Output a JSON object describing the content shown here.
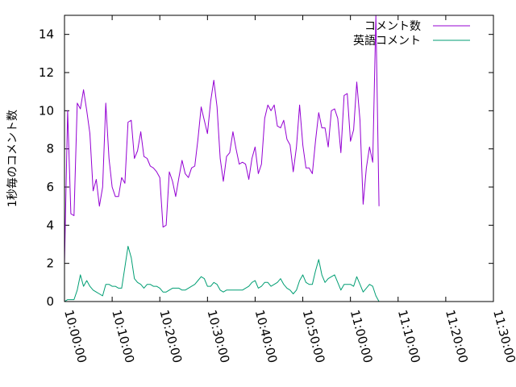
{
  "chart_data": {
    "type": "line",
    "title": "",
    "xlabel": "",
    "ylabel": "1秒毎のコメント数",
    "xlim": [
      "10:00:00",
      "11:30:00"
    ],
    "ylim": [
      0,
      15
    ],
    "x_ticks": [
      "10:00:00",
      "10:10:00",
      "10:20:00",
      "10:30:00",
      "10:40:00",
      "10:50:00",
      "11:00:00",
      "11:10:00",
      "11:20:00",
      "11:30:00"
    ],
    "y_ticks": [
      0,
      2,
      4,
      6,
      8,
      10,
      12,
      14
    ],
    "grid": false,
    "legend_position": "top-right",
    "series": [
      {
        "name": "コメント数",
        "color": "#9400d3",
        "points": [
          [
            "10:00:00",
            2.0
          ],
          [
            "10:00:40",
            10.0
          ],
          [
            "10:01:20",
            4.6
          ],
          [
            "10:02:00",
            4.5
          ],
          [
            "10:02:40",
            10.4
          ],
          [
            "10:03:20",
            10.1
          ],
          [
            "10:04:00",
            11.1
          ],
          [
            "10:04:40",
            10.0
          ],
          [
            "10:05:20",
            8.8
          ],
          [
            "10:06:00",
            5.8
          ],
          [
            "10:06:40",
            6.4
          ],
          [
            "10:07:20",
            5.0
          ],
          [
            "10:08:00",
            6.0
          ],
          [
            "10:08:40",
            10.4
          ],
          [
            "10:09:20",
            7.5
          ],
          [
            "10:10:00",
            6.0
          ],
          [
            "10:10:40",
            5.5
          ],
          [
            "10:11:20",
            5.5
          ],
          [
            "10:12:00",
            6.5
          ],
          [
            "10:12:40",
            6.2
          ],
          [
            "10:13:20",
            9.4
          ],
          [
            "10:14:00",
            9.5
          ],
          [
            "10:14:40",
            7.5
          ],
          [
            "10:15:20",
            7.9
          ],
          [
            "10:16:00",
            8.9
          ],
          [
            "10:16:40",
            7.6
          ],
          [
            "10:17:20",
            7.5
          ],
          [
            "10:18:00",
            7.1
          ],
          [
            "10:18:40",
            7.0
          ],
          [
            "10:19:20",
            6.8
          ],
          [
            "10:20:00",
            6.5
          ],
          [
            "10:20:40",
            3.9
          ],
          [
            "10:21:20",
            4.0
          ],
          [
            "10:22:00",
            6.8
          ],
          [
            "10:22:40",
            6.3
          ],
          [
            "10:23:20",
            5.5
          ],
          [
            "10:24:00",
            6.5
          ],
          [
            "10:24:40",
            7.4
          ],
          [
            "10:25:20",
            6.7
          ],
          [
            "10:26:00",
            6.5
          ],
          [
            "10:26:40",
            7.0
          ],
          [
            "10:27:20",
            7.1
          ],
          [
            "10:28:00",
            8.5
          ],
          [
            "10:28:40",
            10.2
          ],
          [
            "10:29:20",
            9.5
          ],
          [
            "10:30:00",
            8.8
          ],
          [
            "10:30:40",
            10.5
          ],
          [
            "10:31:20",
            11.6
          ],
          [
            "10:32:00",
            10.2
          ],
          [
            "10:32:40",
            7.5
          ],
          [
            "10:33:20",
            6.3
          ],
          [
            "10:34:00",
            7.6
          ],
          [
            "10:34:40",
            7.8
          ],
          [
            "10:35:20",
            8.9
          ],
          [
            "10:36:00",
            8.0
          ],
          [
            "10:36:40",
            7.2
          ],
          [
            "10:37:20",
            7.3
          ],
          [
            "10:38:00",
            7.2
          ],
          [
            "10:38:40",
            6.4
          ],
          [
            "10:39:20",
            7.5
          ],
          [
            "10:40:00",
            8.1
          ],
          [
            "10:40:40",
            6.7
          ],
          [
            "10:41:20",
            7.2
          ],
          [
            "10:42:00",
            9.6
          ],
          [
            "10:42:40",
            10.3
          ],
          [
            "10:43:20",
            10.0
          ],
          [
            "10:44:00",
            10.3
          ],
          [
            "10:44:40",
            9.2
          ],
          [
            "10:45:20",
            9.1
          ],
          [
            "10:46:00",
            9.5
          ],
          [
            "10:46:40",
            8.5
          ],
          [
            "10:47:20",
            8.2
          ],
          [
            "10:48:00",
            6.8
          ],
          [
            "10:48:40",
            8.1
          ],
          [
            "10:49:20",
            10.3
          ],
          [
            "10:50:00",
            8.2
          ],
          [
            "10:50:40",
            7.0
          ],
          [
            "10:51:20",
            7.0
          ],
          [
            "10:52:00",
            6.7
          ],
          [
            "10:52:40",
            8.4
          ],
          [
            "10:53:20",
            9.9
          ],
          [
            "10:54:00",
            9.1
          ],
          [
            "10:54:40",
            9.1
          ],
          [
            "10:55:20",
            8.1
          ],
          [
            "10:56:00",
            10.0
          ],
          [
            "10:56:40",
            10.1
          ],
          [
            "10:57:20",
            9.6
          ],
          [
            "10:58:00",
            7.8
          ],
          [
            "10:58:40",
            10.8
          ],
          [
            "10:59:20",
            10.9
          ],
          [
            "11:00:00",
            8.4
          ],
          [
            "11:00:40",
            9.0
          ],
          [
            "11:01:20",
            11.5
          ],
          [
            "11:02:00",
            9.5
          ],
          [
            "11:02:40",
            5.1
          ],
          [
            "11:03:20",
            7.0
          ],
          [
            "11:04:00",
            8.1
          ],
          [
            "11:04:40",
            7.3
          ],
          [
            "11:05:20",
            15.0
          ],
          [
            "11:06:00",
            5.0
          ]
        ]
      },
      {
        "name": "英語コメント",
        "color": "#009e73",
        "points": [
          [
            "10:00:00",
            0.0
          ],
          [
            "10:00:40",
            0.1
          ],
          [
            "10:01:20",
            0.1
          ],
          [
            "10:02:00",
            0.1
          ],
          [
            "10:02:40",
            0.6
          ],
          [
            "10:03:20",
            1.4
          ],
          [
            "10:04:00",
            0.8
          ],
          [
            "10:04:40",
            1.1
          ],
          [
            "10:05:20",
            0.8
          ],
          [
            "10:06:00",
            0.6
          ],
          [
            "10:06:40",
            0.5
          ],
          [
            "10:07:20",
            0.4
          ],
          [
            "10:08:00",
            0.3
          ],
          [
            "10:08:40",
            0.9
          ],
          [
            "10:09:20",
            0.9
          ],
          [
            "10:10:00",
            0.8
          ],
          [
            "10:10:40",
            0.8
          ],
          [
            "10:11:20",
            0.7
          ],
          [
            "10:12:00",
            0.7
          ],
          [
            "10:12:40",
            1.8
          ],
          [
            "10:13:20",
            2.9
          ],
          [
            "10:14:00",
            2.3
          ],
          [
            "10:14:40",
            1.2
          ],
          [
            "10:15:20",
            1.0
          ],
          [
            "10:16:00",
            0.9
          ],
          [
            "10:16:40",
            0.7
          ],
          [
            "10:17:20",
            0.9
          ],
          [
            "10:18:00",
            0.9
          ],
          [
            "10:18:40",
            0.8
          ],
          [
            "10:19:20",
            0.8
          ],
          [
            "10:20:00",
            0.7
          ],
          [
            "10:20:40",
            0.5
          ],
          [
            "10:21:20",
            0.5
          ],
          [
            "10:22:00",
            0.6
          ],
          [
            "10:22:40",
            0.7
          ],
          [
            "10:23:20",
            0.7
          ],
          [
            "10:24:00",
            0.7
          ],
          [
            "10:24:40",
            0.6
          ],
          [
            "10:25:20",
            0.6
          ],
          [
            "10:26:00",
            0.7
          ],
          [
            "10:26:40",
            0.8
          ],
          [
            "10:27:20",
            0.9
          ],
          [
            "10:28:00",
            1.1
          ],
          [
            "10:28:40",
            1.3
          ],
          [
            "10:29:20",
            1.2
          ],
          [
            "10:30:00",
            0.8
          ],
          [
            "10:30:40",
            0.8
          ],
          [
            "10:31:20",
            1.0
          ],
          [
            "10:32:00",
            0.9
          ],
          [
            "10:32:40",
            0.6
          ],
          [
            "10:33:20",
            0.5
          ],
          [
            "10:34:00",
            0.6
          ],
          [
            "10:34:40",
            0.6
          ],
          [
            "10:35:20",
            0.6
          ],
          [
            "10:36:00",
            0.6
          ],
          [
            "10:36:40",
            0.6
          ],
          [
            "10:37:20",
            0.6
          ],
          [
            "10:38:00",
            0.7
          ],
          [
            "10:38:40",
            0.8
          ],
          [
            "10:39:20",
            1.0
          ],
          [
            "10:40:00",
            1.1
          ],
          [
            "10:40:40",
            0.7
          ],
          [
            "10:41:20",
            0.8
          ],
          [
            "10:42:00",
            1.0
          ],
          [
            "10:42:40",
            1.0
          ],
          [
            "10:43:20",
            0.8
          ],
          [
            "10:44:00",
            0.9
          ],
          [
            "10:44:40",
            1.0
          ],
          [
            "10:45:20",
            1.2
          ],
          [
            "10:46:00",
            0.9
          ],
          [
            "10:46:40",
            0.7
          ],
          [
            "10:47:20",
            0.6
          ],
          [
            "10:48:00",
            0.4
          ],
          [
            "10:48:40",
            0.6
          ],
          [
            "10:49:20",
            1.1
          ],
          [
            "10:50:00",
            1.4
          ],
          [
            "10:50:40",
            1.0
          ],
          [
            "10:51:20",
            0.9
          ],
          [
            "10:52:00",
            0.9
          ],
          [
            "10:52:40",
            1.6
          ],
          [
            "10:53:20",
            2.2
          ],
          [
            "10:54:00",
            1.4
          ],
          [
            "10:54:40",
            1.0
          ],
          [
            "10:55:20",
            1.2
          ],
          [
            "10:56:00",
            1.3
          ],
          [
            "10:56:40",
            1.4
          ],
          [
            "10:57:20",
            1.0
          ],
          [
            "10:58:00",
            0.6
          ],
          [
            "10:58:40",
            0.9
          ],
          [
            "10:59:20",
            0.9
          ],
          [
            "11:00:00",
            0.9
          ],
          [
            "11:00:40",
            0.8
          ],
          [
            "11:01:20",
            1.3
          ],
          [
            "11:02:00",
            0.9
          ],
          [
            "11:02:40",
            0.5
          ],
          [
            "11:03:20",
            0.7
          ],
          [
            "11:04:00",
            0.9
          ],
          [
            "11:04:40",
            0.8
          ],
          [
            "11:05:20",
            0.3
          ],
          [
            "11:06:00",
            0.0
          ]
        ]
      }
    ]
  }
}
